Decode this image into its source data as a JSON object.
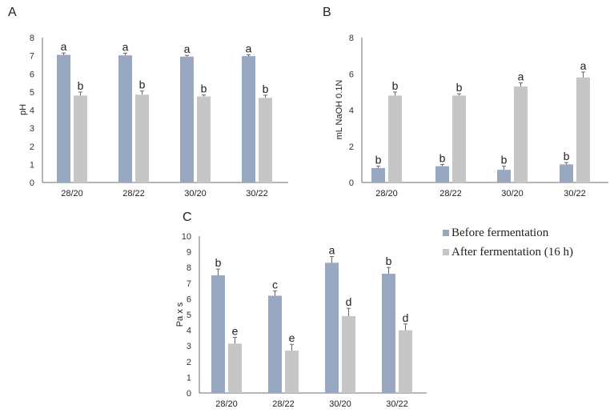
{
  "colors": {
    "before": "#97a8c0",
    "after": "#c6c6c6",
    "axis": "#6d6d6d"
  },
  "legend": [
    {
      "label": "Before fermentation",
      "series": "before"
    },
    {
      "label": "After fermentation (16 h)",
      "series": "after"
    }
  ],
  "chart_data": [
    {
      "panel": "A",
      "type": "bar",
      "title": "",
      "xlabel": "",
      "ylabel": "pH",
      "ylim": [
        0,
        8
      ],
      "yticks": [
        0,
        1,
        2,
        3,
        4,
        5,
        6,
        7,
        8
      ],
      "categories": [
        "28/20",
        "28/22",
        "30/20",
        "30/22"
      ],
      "series": [
        {
          "name": "Before fermentation",
          "key": "before",
          "values": [
            7.05,
            7.02,
            6.95,
            6.98
          ],
          "errors": [
            0.1,
            0.12,
            0.07,
            0.07
          ],
          "letters": [
            "a",
            "a",
            "a",
            "a"
          ]
        },
        {
          "name": "After fermentation (16 h)",
          "key": "after",
          "values": [
            4.8,
            4.85,
            4.75,
            4.67
          ],
          "errors": [
            0.2,
            0.2,
            0.08,
            0.15
          ],
          "letters": [
            "b",
            "b",
            "b",
            "b"
          ]
        }
      ]
    },
    {
      "panel": "B",
      "type": "bar",
      "title": "",
      "xlabel": "",
      "ylabel": "mL NaOH 0.1N",
      "ylim": [
        0,
        8
      ],
      "yticks": [
        0,
        2,
        4,
        6,
        8
      ],
      "categories": [
        "28/20",
        "28/22",
        "30/20",
        "30/22"
      ],
      "series": [
        {
          "name": "Before fermentation",
          "key": "before",
          "values": [
            0.8,
            0.9,
            0.7,
            1.0
          ],
          "errors": [
            0.1,
            0.1,
            0.2,
            0.1
          ],
          "letters": [
            "b",
            "b",
            "b",
            "b"
          ]
        },
        {
          "name": "After fermentation (16 h)",
          "key": "after",
          "values": [
            4.8,
            4.8,
            5.3,
            5.8
          ],
          "errors": [
            0.2,
            0.1,
            0.2,
            0.3
          ],
          "letters": [
            "b",
            "b",
            "a",
            "a"
          ]
        }
      ]
    },
    {
      "panel": "C",
      "type": "bar",
      "title": "",
      "xlabel": "",
      "ylabel": "Pa x s",
      "ylim": [
        0,
        10
      ],
      "yticks": [
        0,
        1,
        2,
        3,
        4,
        5,
        6,
        7,
        8,
        9,
        10
      ],
      "categories": [
        "28/20",
        "28/22",
        "30/20",
        "30/22"
      ],
      "series": [
        {
          "name": "Before fermentation",
          "key": "before",
          "values": [
            7.5,
            6.2,
            8.3,
            7.6
          ],
          "errors": [
            0.4,
            0.3,
            0.4,
            0.4
          ],
          "letters": [
            "b",
            "c",
            "a",
            "b"
          ]
        },
        {
          "name": "After fermentation (16 h)",
          "key": "after",
          "values": [
            3.15,
            2.7,
            4.9,
            4.0
          ],
          "errors": [
            0.4,
            0.4,
            0.5,
            0.4
          ],
          "letters": [
            "e",
            "e",
            "d",
            "d"
          ]
        }
      ],
      "legend_position": "right"
    }
  ]
}
